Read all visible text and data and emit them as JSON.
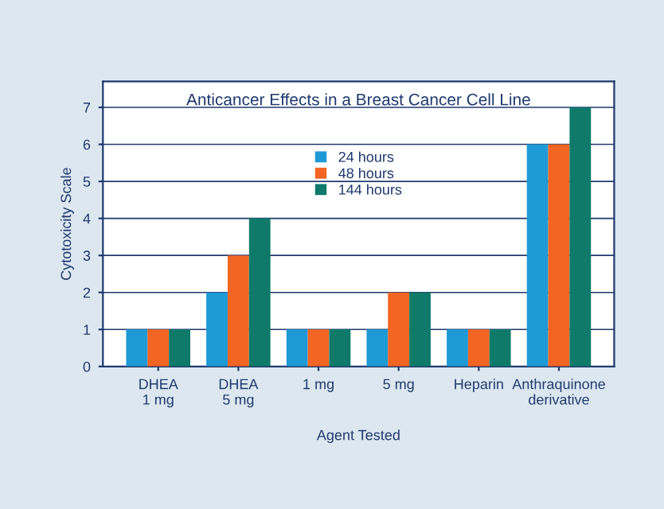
{
  "chart_data": {
    "type": "bar",
    "title": "Anticancer Effects in a Breast Cancer Cell Line",
    "xlabel": "Agent Tested",
    "ylabel": "Cytotoxicity Scale",
    "categories": [
      "DHEA\n1 mg",
      "DHEA\n5 mg",
      "1 mg",
      "5 mg",
      "Heparin",
      "Anthraquinone\nderivative"
    ],
    "series": [
      {
        "name": "24 hours",
        "color": "#1e9ad6",
        "values": [
          1,
          2,
          1,
          1,
          1,
          6
        ]
      },
      {
        "name": "48 hours",
        "color": "#f26522",
        "values": [
          1,
          3,
          1,
          2,
          1,
          6
        ]
      },
      {
        "name": "144 hours",
        "color": "#0f7a6a",
        "values": [
          1,
          4,
          1,
          2,
          1,
          7
        ]
      }
    ],
    "ylim": [
      0,
      7.7
    ],
    "yticks": [
      0,
      1,
      2,
      3,
      4,
      5,
      6,
      7
    ],
    "grid": "y",
    "legend": "top"
  }
}
